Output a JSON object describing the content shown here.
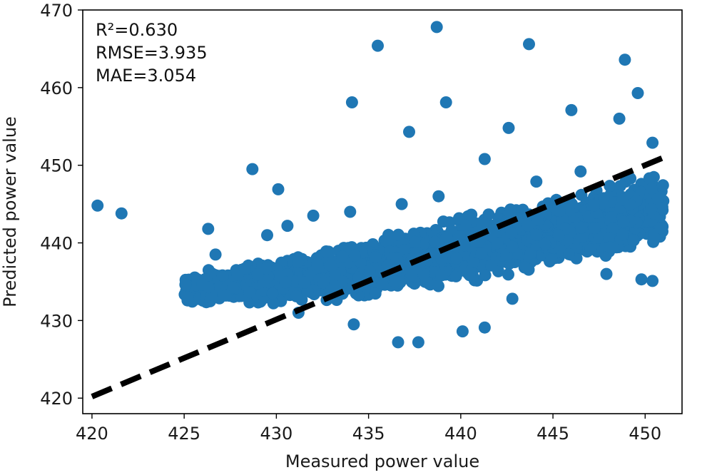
{
  "chart_data": {
    "type": "scatter",
    "title": "",
    "xlabel": "Measured power value",
    "ylabel": "Predicted power value",
    "xlim": [
      419.5,
      452
    ],
    "ylim": [
      418,
      470
    ],
    "x_ticks": [
      420,
      425,
      430,
      435,
      440,
      445,
      450
    ],
    "y_ticks": [
      420,
      430,
      440,
      450,
      460,
      470
    ],
    "x_tick_labels": [
      "420",
      "425",
      "430",
      "435",
      "440",
      "445",
      "450"
    ],
    "y_tick_labels": [
      "420",
      "430",
      "440",
      "450",
      "460",
      "470"
    ],
    "annotations": [
      "R²=0.630",
      "RMSE=3.935",
      "MAE=3.054"
    ],
    "grid": false,
    "colors": {
      "points": "#1f77b4",
      "reference_line": "#000000",
      "axes": "#000000"
    },
    "reference_line": {
      "style": "dashed",
      "x": [
        420,
        451
      ],
      "y": [
        420.2,
        451
      ]
    },
    "dense_cluster": {
      "description_x_range": [
        425,
        451
      ],
      "band_center_at_x": [
        [
          425,
          434.0
        ],
        [
          430,
          435.0
        ],
        [
          435,
          436.5
        ],
        [
          440,
          439.0
        ],
        [
          445,
          441.5
        ],
        [
          450,
          444.0
        ]
      ],
      "band_halfwidth_at_x": [
        [
          425,
          2.5
        ],
        [
          430,
          3.5
        ],
        [
          435,
          4.5
        ],
        [
          440,
          5.0
        ],
        [
          445,
          5.0
        ],
        [
          450,
          5.5
        ]
      ]
    },
    "series": [
      {
        "points": [
          [
            420.3,
            444.8
          ],
          [
            421.6,
            443.8
          ],
          [
            426.3,
            441.8
          ],
          [
            428.7,
            449.5
          ],
          [
            430.1,
            446.9
          ],
          [
            434.1,
            458.1
          ],
          [
            435.5,
            465.4
          ],
          [
            437.2,
            454.3
          ],
          [
            438.7,
            467.8
          ],
          [
            439.2,
            458.1
          ],
          [
            441.3,
            450.8
          ],
          [
            442.6,
            454.8
          ],
          [
            443.7,
            465.6
          ],
          [
            446.0,
            457.1
          ],
          [
            448.6,
            456.0
          ],
          [
            448.9,
            463.6
          ],
          [
            449.6,
            459.3
          ],
          [
            450.4,
            452.9
          ],
          [
            436.6,
            427.2
          ],
          [
            437.7,
            427.2
          ],
          [
            441.3,
            429.1
          ],
          [
            440.1,
            428.6
          ],
          [
            442.8,
            432.8
          ],
          [
            447.9,
            436.0
          ],
          [
            449.8,
            435.3
          ],
          [
            450.4,
            435.1
          ],
          [
            438.8,
            446.0
          ],
          [
            436.8,
            445.0
          ],
          [
            434.0,
            444.0
          ],
          [
            446.5,
            449.2
          ],
          [
            449.2,
            448.3
          ],
          [
            430.6,
            442.2
          ],
          [
            444.1,
            447.9
          ],
          [
            432.7,
            438.9
          ],
          [
            425.2,
            433.0
          ],
          [
            426.7,
            438.5
          ],
          [
            431.2,
            431.0
          ],
          [
            434.2,
            429.5
          ],
          [
            429.5,
            441.0
          ],
          [
            432.0,
            443.5
          ]
        ]
      }
    ]
  }
}
